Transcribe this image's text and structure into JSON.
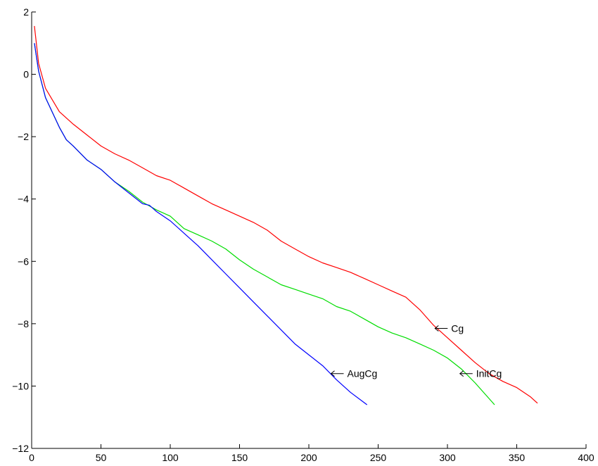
{
  "chart_data": {
    "type": "line",
    "title": "",
    "xlabel": "",
    "ylabel": "",
    "xlim": [
      0,
      400
    ],
    "ylim": [
      -12,
      2
    ],
    "x_ticks": [
      0,
      50,
      100,
      150,
      200,
      250,
      300,
      350,
      400
    ],
    "y_ticks": [
      2,
      0,
      -2,
      -4,
      -6,
      -8,
      -10,
      -12
    ],
    "x_tick_labels": [
      "0",
      "50",
      "100",
      "150",
      "200",
      "250",
      "300",
      "350",
      "400"
    ],
    "y_tick_labels": [
      "2",
      "0",
      "−2",
      "−4",
      "−6",
      "−8",
      "−10",
      "−12"
    ],
    "grid": false,
    "series": [
      {
        "name": "Cg",
        "color": "#ff0000",
        "points": [
          [
            2,
            1.55
          ],
          [
            5,
            0.35
          ],
          [
            10,
            -0.45
          ],
          [
            20,
            -1.2
          ],
          [
            30,
            -1.6
          ],
          [
            40,
            -1.95
          ],
          [
            50,
            -2.3
          ],
          [
            60,
            -2.55
          ],
          [
            70,
            -2.75
          ],
          [
            80,
            -3.0
          ],
          [
            90,
            -3.25
          ],
          [
            100,
            -3.4
          ],
          [
            110,
            -3.65
          ],
          [
            120,
            -3.9
          ],
          [
            130,
            -4.15
          ],
          [
            140,
            -4.35
          ],
          [
            150,
            -4.55
          ],
          [
            160,
            -4.75
          ],
          [
            170,
            -5.0
          ],
          [
            180,
            -5.35
          ],
          [
            190,
            -5.6
          ],
          [
            200,
            -5.85
          ],
          [
            210,
            -6.05
          ],
          [
            220,
            -6.2
          ],
          [
            230,
            -6.35
          ],
          [
            240,
            -6.55
          ],
          [
            250,
            -6.75
          ],
          [
            260,
            -6.95
          ],
          [
            270,
            -7.15
          ],
          [
            280,
            -7.55
          ],
          [
            290,
            -8.05
          ],
          [
            300,
            -8.45
          ],
          [
            310,
            -8.85
          ],
          [
            320,
            -9.25
          ],
          [
            330,
            -9.6
          ],
          [
            340,
            -9.85
          ],
          [
            350,
            -10.05
          ],
          [
            360,
            -10.35
          ],
          [
            365,
            -10.55
          ]
        ],
        "label": {
          "text": "Cg",
          "x": 291,
          "y": -8.15
        }
      },
      {
        "name": "InitCg",
        "color": "#00dd00",
        "points": [
          [
            2,
            1.0
          ],
          [
            5,
            0.1
          ],
          [
            10,
            -0.75
          ],
          [
            20,
            -1.7
          ],
          [
            25,
            -2.1
          ],
          [
            30,
            -2.3
          ],
          [
            40,
            -2.75
          ],
          [
            50,
            -3.05
          ],
          [
            60,
            -3.45
          ],
          [
            70,
            -3.75
          ],
          [
            80,
            -4.1
          ],
          [
            90,
            -4.35
          ],
          [
            100,
            -4.55
          ],
          [
            110,
            -4.95
          ],
          [
            120,
            -5.15
          ],
          [
            130,
            -5.35
          ],
          [
            140,
            -5.6
          ],
          [
            150,
            -5.95
          ],
          [
            160,
            -6.25
          ],
          [
            170,
            -6.5
          ],
          [
            180,
            -6.75
          ],
          [
            190,
            -6.9
          ],
          [
            200,
            -7.05
          ],
          [
            210,
            -7.2
          ],
          [
            220,
            -7.45
          ],
          [
            230,
            -7.6
          ],
          [
            240,
            -7.85
          ],
          [
            250,
            -8.1
          ],
          [
            260,
            -8.3
          ],
          [
            270,
            -8.45
          ],
          [
            280,
            -8.65
          ],
          [
            290,
            -8.85
          ],
          [
            300,
            -9.1
          ],
          [
            310,
            -9.45
          ],
          [
            320,
            -9.9
          ],
          [
            334,
            -10.6
          ]
        ],
        "label": {
          "text": "InitCg",
          "x": 309,
          "y": -9.6
        }
      },
      {
        "name": "AugCg",
        "color": "#0000ff",
        "points": [
          [
            2,
            1.0
          ],
          [
            5,
            0.1
          ],
          [
            10,
            -0.75
          ],
          [
            20,
            -1.7
          ],
          [
            25,
            -2.1
          ],
          [
            30,
            -2.3
          ],
          [
            40,
            -2.75
          ],
          [
            50,
            -3.05
          ],
          [
            60,
            -3.45
          ],
          [
            70,
            -3.8
          ],
          [
            80,
            -4.15
          ],
          [
            85,
            -4.2
          ],
          [
            90,
            -4.4
          ],
          [
            100,
            -4.7
          ],
          [
            110,
            -5.1
          ],
          [
            120,
            -5.5
          ],
          [
            130,
            -5.95
          ],
          [
            140,
            -6.4
          ],
          [
            150,
            -6.85
          ],
          [
            160,
            -7.3
          ],
          [
            170,
            -7.75
          ],
          [
            180,
            -8.2
          ],
          [
            190,
            -8.65
          ],
          [
            200,
            -9.0
          ],
          [
            210,
            -9.35
          ],
          [
            220,
            -9.8
          ],
          [
            230,
            -10.2
          ],
          [
            242,
            -10.6
          ]
        ],
        "label": {
          "text": "AugCg",
          "x": 216,
          "y": -9.6
        }
      }
    ]
  }
}
